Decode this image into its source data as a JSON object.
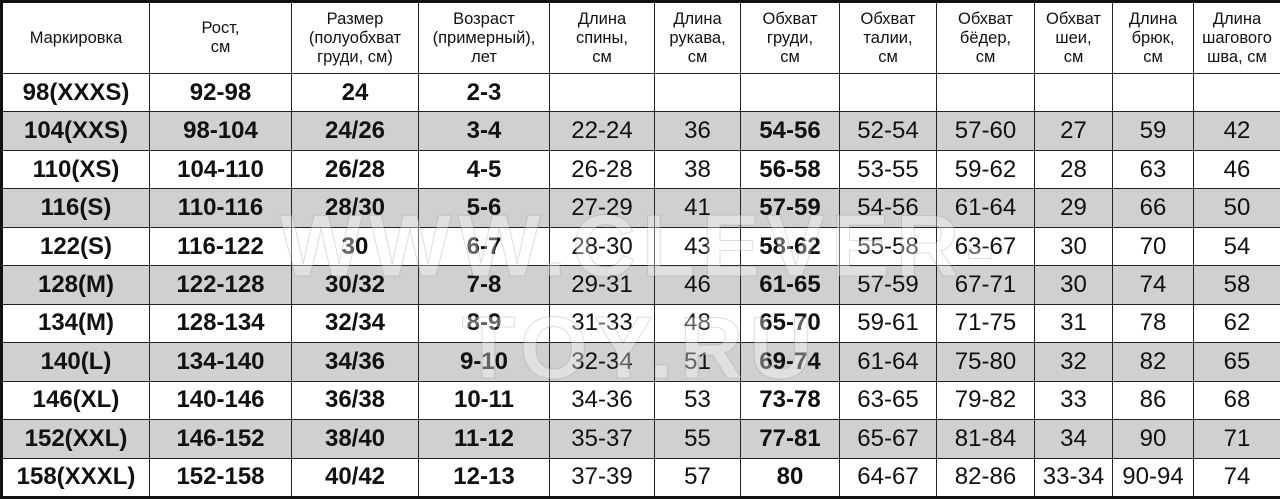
{
  "watermark": "WWW.CLEVER-TOY.RU",
  "headers": [
    "Маркировка",
    "Рост,\nсм",
    "Размер\n(полуобхват\nгруди, см)",
    "Возраст\n(примерный),\nлет",
    "Длина\nспины,\nсм",
    "Длина\nрукава,\nсм",
    "Обхват\nгруди,\nсм",
    "Обхват\nталии,\nсм",
    "Обхват\nбёдер,\nсм",
    "Обхват\nшеи,\nсм",
    "Длина\nбрюк,\nсм",
    "Длина\nшагового\nшва, см"
  ],
  "bold_columns": [
    0,
    1,
    2,
    3,
    6
  ],
  "row_shading": "#d0d0d0",
  "rows": [
    [
      "98(XXXS)",
      "92-98",
      "24",
      "2-3",
      "",
      "",
      "",
      "",
      "",
      "",
      "",
      ""
    ],
    [
      "104(XXS)",
      "98-104",
      "24/26",
      "3-4",
      "22-24",
      "36",
      "54-56",
      "52-54",
      "57-60",
      "27",
      "59",
      "42"
    ],
    [
      "110(XS)",
      "104-110",
      "26/28",
      "4-5",
      "26-28",
      "38",
      "56-58",
      "53-55",
      "59-62",
      "28",
      "63",
      "46"
    ],
    [
      "116(S)",
      "110-116",
      "28/30",
      "5-6",
      "27-29",
      "41",
      "57-59",
      "54-56",
      "61-64",
      "29",
      "66",
      "50"
    ],
    [
      "122(S)",
      "116-122",
      "30",
      "6-7",
      "28-30",
      "43",
      "58-62",
      "55-58",
      "63-67",
      "30",
      "70",
      "54"
    ],
    [
      "128(M)",
      "122-128",
      "30/32",
      "7-8",
      "29-31",
      "46",
      "61-65",
      "57-59",
      "67-71",
      "30",
      "74",
      "58"
    ],
    [
      "134(M)",
      "128-134",
      "32/34",
      "8-9",
      "31-33",
      "48",
      "65-70",
      "59-61",
      "71-75",
      "31",
      "78",
      "62"
    ],
    [
      "140(L)",
      "134-140",
      "34/36",
      "9-10",
      "32-34",
      "51",
      "69-74",
      "61-64",
      "75-80",
      "32",
      "82",
      "65"
    ],
    [
      "146(XL)",
      "140-146",
      "36/38",
      "10-11",
      "34-36",
      "53",
      "73-78",
      "63-65",
      "79-82",
      "33",
      "86",
      "68"
    ],
    [
      "152(XXL)",
      "146-152",
      "38/40",
      "11-12",
      "35-37",
      "55",
      "77-81",
      "65-67",
      "81-84",
      "34",
      "90",
      "71"
    ],
    [
      "158(XXXL)",
      "152-158",
      "40/42",
      "12-13",
      "37-39",
      "57",
      "80",
      "64-67",
      "82-86",
      "33-34",
      "90-94",
      "74"
    ]
  ]
}
